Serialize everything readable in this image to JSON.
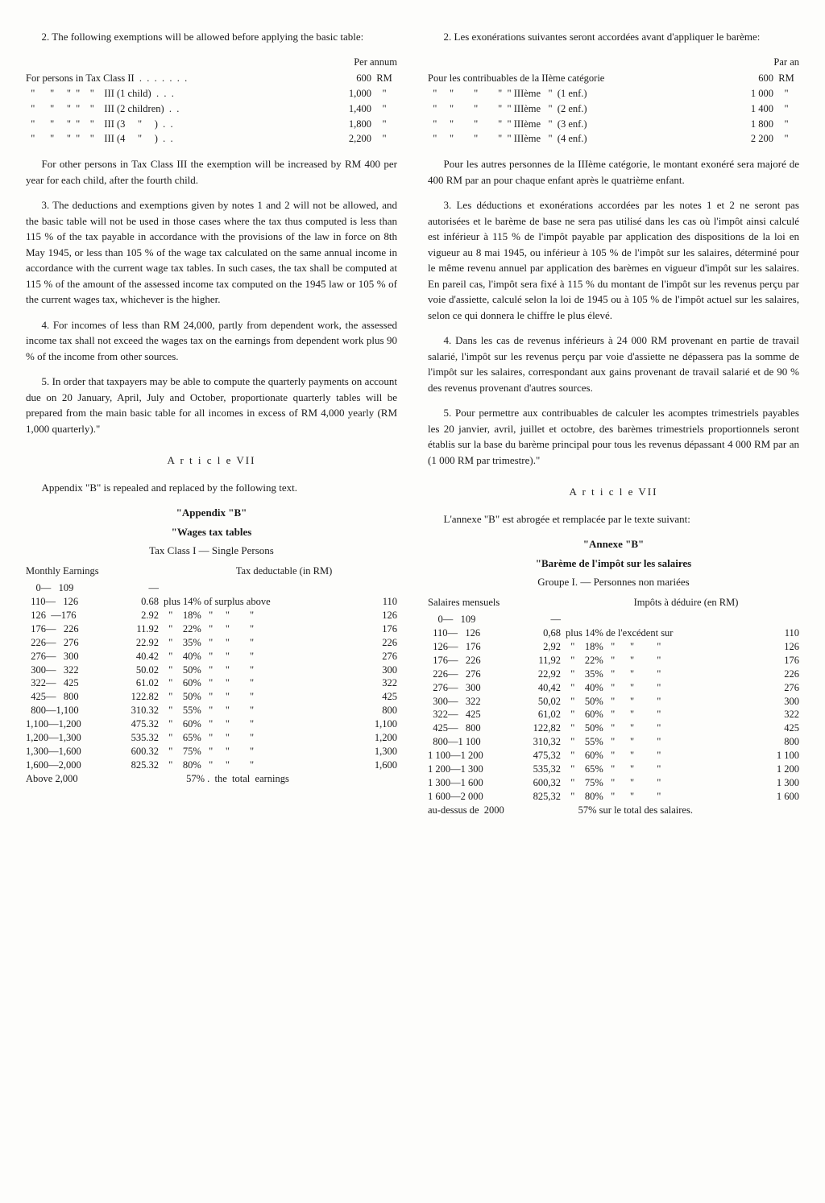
{
  "en": {
    "p2_intro": "2. The following exemptions will be allowed before applying the basic table:",
    "exempt_header": "Per annum",
    "exempt_rows": [
      {
        "line": "For persons in Tax Class II  .  .  .  .  .  .  .",
        "amount": "600",
        "unit": "RM"
      },
      {
        "line": "  \"      \"     \"  \"    \"    III (1 child)  .  .  .",
        "amount": "1,000",
        "unit": "\""
      },
      {
        "line": "  \"      \"     \"  \"    \"    III (2 children)  .  .",
        "amount": "1,400",
        "unit": "\""
      },
      {
        "line": "  \"      \"     \"  \"    \"    III (3     \"     )  .  .",
        "amount": "1,800",
        "unit": "\""
      },
      {
        "line": "  \"      \"     \"  \"    \"    III (4     \"     )  .  .",
        "amount": "2,200",
        "unit": "\""
      }
    ],
    "p_other": "For other persons in Tax Class III the exemption will be increased by RM 400 per year for each child, after the fourth child.",
    "p3": "3. The deductions and exemptions given by notes 1 and 2 will not be allowed, and the basic table will not be used in those cases where the tax thus computed is less than 115 % of the tax payable in accordance with the provisions of the law in force on 8th May 1945, or less than 105 % of the wage tax calculated on the same annual income in accordance with the current wage tax tables. In such cases, the tax shall be computed at 115 % of the amount of the assessed income tax computed on the 1945 law or 105 % of the current wages tax, whichever is the higher.",
    "p4": "4. For incomes of less than RM 24,000, partly from dependent work, the assessed income tax shall not exceed the wages tax on the earnings from dependent work plus 90 % of the income from other sources.",
    "p5": "5. In order that taxpayers may be able to compute the quarterly payments on account due on 20 January, April, July and October, proportionate quarterly tables will be prepared from the main basic table for all incomes in excess of RM 4,000 yearly (RM 1,000 quarterly).\"",
    "article": "A r t i c l e  VII",
    "appendix_intro": "Appendix \"B\" is repealed and replaced by the following text.",
    "appendix_b": "\"Appendix \"B\"",
    "wages_tax": "\"Wages tax tables",
    "tax_class": "Tax Class I — Single Persons",
    "wages_hdr_left": "Monthly Earnings",
    "wages_hdr_right": "Tax deductable (in RM)",
    "wages_rows": [
      {
        "range": "    0—   109",
        "base": "—",
        "mid": "",
        "thresh": ""
      },
      {
        "range": "  110—   126",
        "base": "0.68",
        "mid": "plus 14% of surplus above",
        "thresh": "110"
      },
      {
        "range": "  126  —176",
        "base": "2.92",
        "mid": "  \"    18%   \"     \"        \"",
        "thresh": "126"
      },
      {
        "range": "  176—   226",
        "base": "11.92",
        "mid": "  \"    22%   \"     \"        \"",
        "thresh": "176"
      },
      {
        "range": "  226—   276",
        "base": "22.92",
        "mid": "  \"    35%   \"     \"        \"",
        "thresh": "226"
      },
      {
        "range": "  276—   300",
        "base": "40.42",
        "mid": "  \"    40%   \"     \"        \"",
        "thresh": "276"
      },
      {
        "range": "  300—   322",
        "base": "50.02",
        "mid": "  \"    50%   \"     \"        \"",
        "thresh": "300"
      },
      {
        "range": "  322—   425",
        "base": "61.02",
        "mid": "  \"    60%   \"     \"        \"",
        "thresh": "322"
      },
      {
        "range": "  425—   800",
        "base": "122.82",
        "mid": "  \"    50%   \"     \"        \"",
        "thresh": "425"
      },
      {
        "range": "  800—1,100",
        "base": "310.32",
        "mid": "  \"    55%   \"     \"        \"",
        "thresh": "800"
      },
      {
        "range": "1,100—1,200",
        "base": "475.32",
        "mid": "  \"    60%   \"     \"        \"",
        "thresh": "1,100"
      },
      {
        "range": "1,200—1,300",
        "base": "535.32",
        "mid": "  \"    65%   \"     \"        \"",
        "thresh": "1,200"
      },
      {
        "range": "1,300—1,600",
        "base": "600.32",
        "mid": "  \"    75%   \"     \"        \"",
        "thresh": "1,300"
      },
      {
        "range": "1,600—2,000",
        "base": "825.32",
        "mid": "  \"    80%   \"     \"        \"",
        "thresh": "1,600"
      },
      {
        "range": "Above 2,000",
        "base": "",
        "mid": "         57% .  the  total  earnings",
        "thresh": ""
      }
    ]
  },
  "fr": {
    "p2_intro": "2. Les exonérations suivantes seront accordées avant d'appliquer le barème:",
    "exempt_header": "Par an",
    "exempt_rows": [
      {
        "line": "Pour les contribuables de la IIème catégorie",
        "amount": "600",
        "unit": "RM"
      },
      {
        "line": "  \"     \"        \"        \"  \" IIIème   \"  (1 enf.)",
        "amount": "1 000",
        "unit": "\""
      },
      {
        "line": "  \"     \"        \"        \"  \" IIIème   \"  (2 enf.)",
        "amount": "1 400",
        "unit": "\""
      },
      {
        "line": "  \"     \"        \"        \"  \" IIIème   \"  (3 enf.)",
        "amount": "1 800",
        "unit": "\""
      },
      {
        "line": "  \"     \"        \"        \"  \" IIIème   \"  (4 enf.)",
        "amount": "2 200",
        "unit": "\""
      }
    ],
    "p_other": "Pour les autres personnes de la IIIème catégorie, le montant exonéré sera majoré de 400 RM par an pour chaque enfant après le quatrième enfant.",
    "p3": "3. Les déductions et exonérations accordées par les notes 1 et 2 ne seront pas autorisées et le barème de base ne sera pas utilisé dans les cas où l'impôt ainsi calculé est inférieur à 115 % de l'impôt payable par application des dispositions de la loi en vigueur au 8 mai 1945, ou inférieur à 105 % de l'impôt sur les salaires, déterminé pour le même revenu annuel par application des barèmes en vigueur d'impôt sur les salaires. En pareil cas, l'impôt sera fixé à 115 % du montant de l'impôt sur les revenus perçu par voie d'assiette, calculé selon la loi de 1945 ou à 105 % de l'impôt actuel sur les salaires, selon ce qui donnera le chiffre le plus élevé.",
    "p4": "4. Dans les cas de revenus inférieurs à 24 000 RM provenant en partie de travail salarié, l'impôt sur les revenus perçu par voie d'assiette ne dépassera pas la somme de l'impôt sur les salaires, correspondant aux gains provenant de travail salarié et de 90 % des revenus provenant d'autres sources.",
    "p5": "5. Pour permettre aux contribuables de calculer les acomptes trimestriels payables les 20 janvier, avril, juillet et octobre, des barèmes trimestriels proportionnels seront établis sur la base du barème principal pour tous les revenus dépassant 4 000 RM par an (1 000 RM par trimestre).\"",
    "article": "A r t i c l e  VII",
    "appendix_intro": "L'annexe \"B\" est abrogée et remplacée par le texte suivant:",
    "appendix_b": "\"Annexe \"B\"",
    "wages_tax": "\"Barème de l'impôt sur les salaires",
    "tax_class": "Groupe I. — Personnes non mariées",
    "wages_hdr_left": "Salaires mensuels",
    "wages_hdr_right": "Impôts à déduire (en RM)",
    "wages_rows": [
      {
        "range": "    0—   109",
        "base": "—",
        "mid": "",
        "thresh": ""
      },
      {
        "range": "  110—   126",
        "base": "0,68",
        "mid": "plus 14% de l'excédent sur",
        "thresh": "110"
      },
      {
        "range": "  126—   176",
        "base": "2,92",
        "mid": "  \"    18%   \"      \"         \"",
        "thresh": "126"
      },
      {
        "range": "  176—   226",
        "base": "11,92",
        "mid": "  \"    22%   \"      \"         \"",
        "thresh": "176"
      },
      {
        "range": "  226—   276",
        "base": "22,92",
        "mid": "  \"    35%   \"      \"         \"",
        "thresh": "226"
      },
      {
        "range": "  276—   300",
        "base": "40,42",
        "mid": "  \"    40%   \"      \"         \"",
        "thresh": "276"
      },
      {
        "range": "  300—   322",
        "base": "50,02",
        "mid": "  \"    50%   \"      \"         \"",
        "thresh": "300"
      },
      {
        "range": "  322—   425",
        "base": "61,02",
        "mid": "  \"    60%   \"      \"         \"",
        "thresh": "322"
      },
      {
        "range": "  425—   800",
        "base": "122,82",
        "mid": "  \"    50%   \"      \"         \"",
        "thresh": "425"
      },
      {
        "range": "  800—1 100",
        "base": "310,32",
        "mid": "  \"    55%   \"      \"         \"",
        "thresh": "800"
      },
      {
        "range": "1 100—1 200",
        "base": "475,32",
        "mid": "  \"    60%   \"      \"         \"",
        "thresh": "1 100"
      },
      {
        "range": "1 200—1 300",
        "base": "535,32",
        "mid": "  \"    65%   \"      \"         \"",
        "thresh": "1 200"
      },
      {
        "range": "1 300—1 600",
        "base": "600,32",
        "mid": "  \"    75%   \"      \"         \"",
        "thresh": "1 300"
      },
      {
        "range": "1 600—2 000",
        "base": "825,32",
        "mid": "  \"    80%   \"      \"         \"",
        "thresh": "1 600"
      },
      {
        "range": "au-dessus de  2000",
        "base": "",
        "mid": "     57% sur le total des salaires.",
        "thresh": ""
      }
    ]
  }
}
